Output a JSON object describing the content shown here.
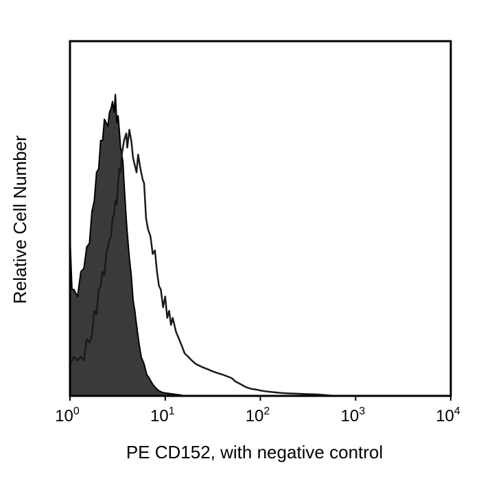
{
  "chart_data": {
    "type": "area",
    "title": "",
    "xlabel": "PE CD152, with negative control",
    "ylabel": "Relative Cell Number",
    "x_scale": "log",
    "xlim": [
      1,
      10000
    ],
    "ylim": [
      0,
      1
    ],
    "grid": false,
    "legend": "none",
    "x_ticks": [
      {
        "base": "10",
        "exp": "0",
        "value": 1
      },
      {
        "base": "10",
        "exp": "1",
        "value": 10
      },
      {
        "base": "10",
        "exp": "2",
        "value": 100
      },
      {
        "base": "10",
        "exp": "3",
        "value": 1000
      },
      {
        "base": "10",
        "exp": "4",
        "value": 10000
      }
    ],
    "series": [
      {
        "style": "filled",
        "color": "#3a3a3a",
        "x": [
          1.0,
          1.05,
          1.1,
          1.2,
          1.3,
          1.4,
          1.5,
          1.6,
          1.7,
          1.8,
          1.9,
          2.0,
          2.1,
          2.2,
          2.3,
          2.4,
          2.5,
          2.6,
          2.7,
          2.8,
          2.9,
          3.0,
          3.1,
          3.2,
          3.3,
          3.4,
          3.5,
          3.6,
          3.7,
          3.8,
          3.9,
          4.0,
          4.2,
          4.4,
          4.6,
          4.8,
          5.0,
          5.3,
          5.6,
          6.0,
          6.4,
          6.8,
          7.3,
          7.8,
          8.5,
          9.3,
          10.2,
          11.5,
          13.0,
          15.0
        ],
        "y": [
          0.45,
          0.3,
          0.3,
          0.28,
          0.35,
          0.36,
          0.42,
          0.43,
          0.52,
          0.55,
          0.63,
          0.64,
          0.72,
          0.72,
          0.78,
          0.77,
          0.76,
          0.8,
          0.81,
          0.83,
          0.8,
          0.85,
          0.77,
          0.79,
          0.75,
          0.7,
          0.68,
          0.66,
          0.6,
          0.55,
          0.5,
          0.46,
          0.39,
          0.34,
          0.27,
          0.24,
          0.2,
          0.15,
          0.11,
          0.09,
          0.06,
          0.05,
          0.035,
          0.025,
          0.015,
          0.01,
          0.008,
          0.006,
          0.004,
          0.002
        ]
      },
      {
        "style": "outline",
        "color": "#1a1a1a",
        "x": [
          1.0,
          1.1,
          1.2,
          1.3,
          1.4,
          1.5,
          1.6,
          1.7,
          1.8,
          1.9,
          2.0,
          2.1,
          2.2,
          2.3,
          2.4,
          2.5,
          2.6,
          2.7,
          2.8,
          2.9,
          3.0,
          3.1,
          3.2,
          3.3,
          3.4,
          3.5,
          3.6,
          3.7,
          3.8,
          3.9,
          4.0,
          4.2,
          4.4,
          4.6,
          4.8,
          5.0,
          5.2,
          5.5,
          5.8,
          6.0,
          6.3,
          6.6,
          7.0,
          7.4,
          7.8,
          8.2,
          8.6,
          9.0,
          9.5,
          10.0,
          10.5,
          11.0,
          11.5,
          12.0,
          13.0,
          14.0,
          15.0,
          16.0,
          17.5,
          19.0,
          21.0,
          23.0,
          25.0,
          28.0,
          31.0,
          35.0,
          40.0,
          45.0,
          50.0,
          55.0,
          60.0,
          65.0,
          70.0,
          80.0,
          90.0,
          100.0,
          120.0,
          140.0,
          170.0,
          200.0,
          250.0,
          300.0,
          400.0,
          500.0,
          600.0
        ],
        "y": [
          0.09,
          0.11,
          0.1,
          0.11,
          0.1,
          0.16,
          0.15,
          0.17,
          0.24,
          0.23,
          0.3,
          0.31,
          0.35,
          0.34,
          0.4,
          0.42,
          0.44,
          0.45,
          0.5,
          0.51,
          0.55,
          0.54,
          0.6,
          0.64,
          0.63,
          0.68,
          0.7,
          0.72,
          0.73,
          0.74,
          0.7,
          0.75,
          0.72,
          0.67,
          0.65,
          0.63,
          0.68,
          0.64,
          0.61,
          0.6,
          0.5,
          0.47,
          0.45,
          0.4,
          0.41,
          0.35,
          0.31,
          0.3,
          0.25,
          0.28,
          0.22,
          0.24,
          0.2,
          0.22,
          0.18,
          0.16,
          0.14,
          0.12,
          0.11,
          0.1,
          0.09,
          0.085,
          0.08,
          0.075,
          0.07,
          0.065,
          0.06,
          0.055,
          0.05,
          0.04,
          0.035,
          0.03,
          0.025,
          0.02,
          0.018,
          0.015,
          0.012,
          0.01,
          0.008,
          0.007,
          0.006,
          0.005,
          0.004,
          0.002,
          0.0
        ]
      }
    ]
  }
}
